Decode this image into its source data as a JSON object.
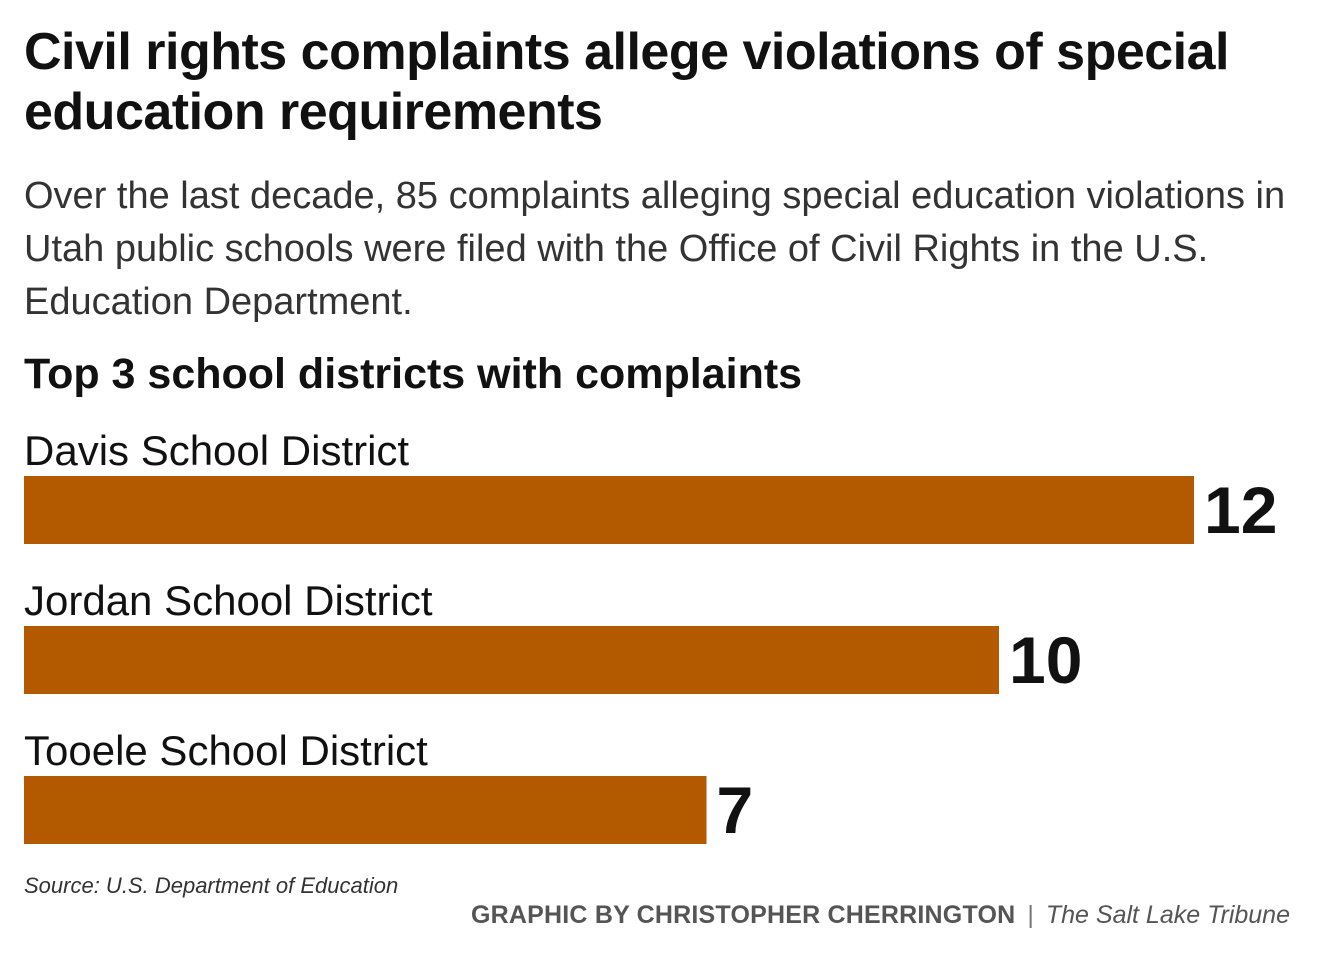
{
  "header": {
    "title": "Civil rights complaints allege violations of special education requirements",
    "subtitle": "Over the last decade, 85 complaints alleging special education violations in Utah public schools were filed with the Office of Civil Rights in the U.S. Education Department."
  },
  "chart_data": {
    "type": "bar",
    "orientation": "horizontal",
    "title": "Top 3 school districts with complaints",
    "categories": [
      "Davis School District",
      "Jordan School District",
      "Tooele School District"
    ],
    "values": [
      12,
      10,
      7
    ],
    "bar_color": "#b35900",
    "grid": false,
    "legend": "none",
    "xlim": [
      0,
      12
    ]
  },
  "footer": {
    "source": "Source: U.S. Department of Education",
    "byline": "GRAPHIC BY CHRISTOPHER CHERRINGTON",
    "separator": "|",
    "publication": "The Salt Lake Tribune"
  }
}
